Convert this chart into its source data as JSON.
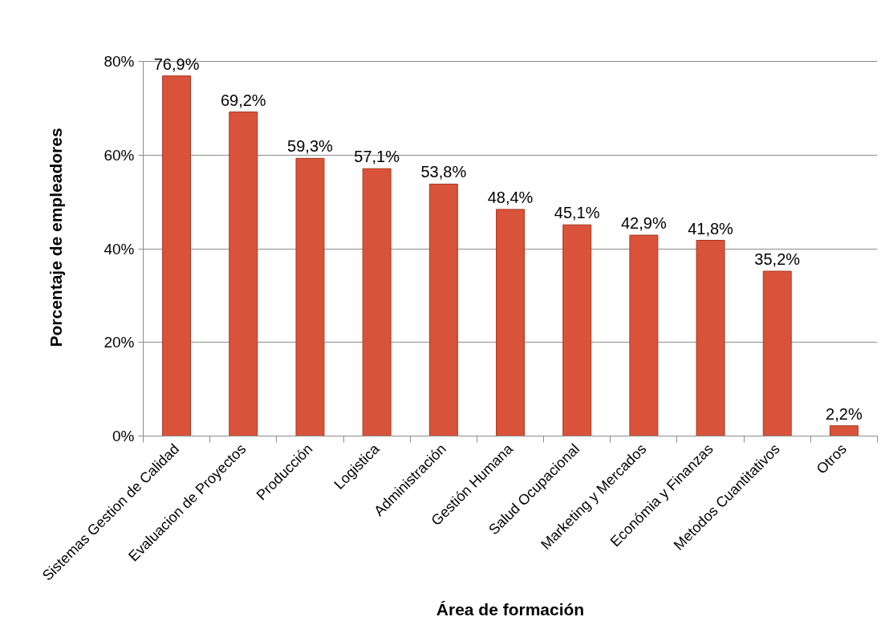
{
  "chart_data": {
    "type": "bar",
    "xlabel": "Área de formación",
    "ylabel": "Porcentaje de empleadores",
    "categories": [
      "Sistemas Gestion de Calidad",
      "Evaluacion de Proyectos",
      "Producción",
      "Logistica",
      "Administración",
      "Gestión Humana",
      "Salud Ocupacional",
      "Marketing y Mercados",
      "Económia y Finanzas",
      "Metodos Cuantitativos",
      "Otros"
    ],
    "values": [
      76.9,
      69.2,
      59.3,
      57.1,
      53.8,
      48.4,
      45.1,
      42.9,
      41.8,
      35.2,
      2.2
    ],
    "value_labels": [
      "76,9%",
      "69,2%",
      "59,3%",
      "57,1%",
      "53,8%",
      "48,4%",
      "45,1%",
      "42,9%",
      "41,8%",
      "35,2%",
      "2,2%"
    ],
    "color": "#d9533a",
    "ylim": [
      0,
      80
    ],
    "yticks": [
      {
        "value": 0,
        "label": "0%"
      },
      {
        "value": 20,
        "label": "20%"
      },
      {
        "value": 40,
        "label": "40%"
      },
      {
        "value": 60,
        "label": "60%"
      },
      {
        "value": 80,
        "label": "80%"
      }
    ],
    "grid": "y"
  }
}
